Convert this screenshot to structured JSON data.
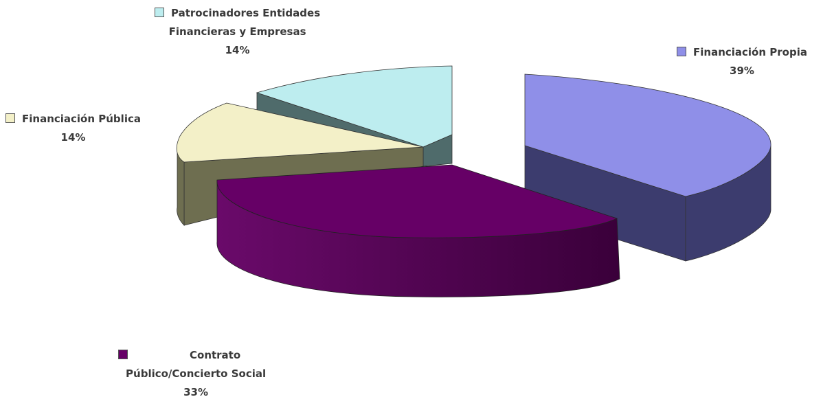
{
  "chart_data": {
    "type": "pie",
    "title": "",
    "slices": [
      {
        "id": "financiacion-propia",
        "label_lines": [
          "Financiación Propia"
        ],
        "percent_label": "39%",
        "value": 39,
        "color_top": "#8F8FE8",
        "color_side": "#3C3C6E"
      },
      {
        "id": "contrato-publico",
        "label_lines": [
          "Contrato",
          "Público/Concierto Social"
        ],
        "percent_label": "33%",
        "value": 33,
        "color_top": "#660066",
        "color_side": "#4A004A"
      },
      {
        "id": "financiacion-publica",
        "label_lines": [
          "Financiación Pública"
        ],
        "percent_label": "14%",
        "value": 14,
        "color_top": "#F3F0C8",
        "color_side": "#6E6E50"
      },
      {
        "id": "patrocinadores",
        "label_lines": [
          "Patrocinadores Entidades",
          "Financieras y Empresas"
        ],
        "percent_label": "14%",
        "value": 14,
        "color_top": "#BDEDEF",
        "color_side": "#4F6B6B"
      }
    ]
  }
}
